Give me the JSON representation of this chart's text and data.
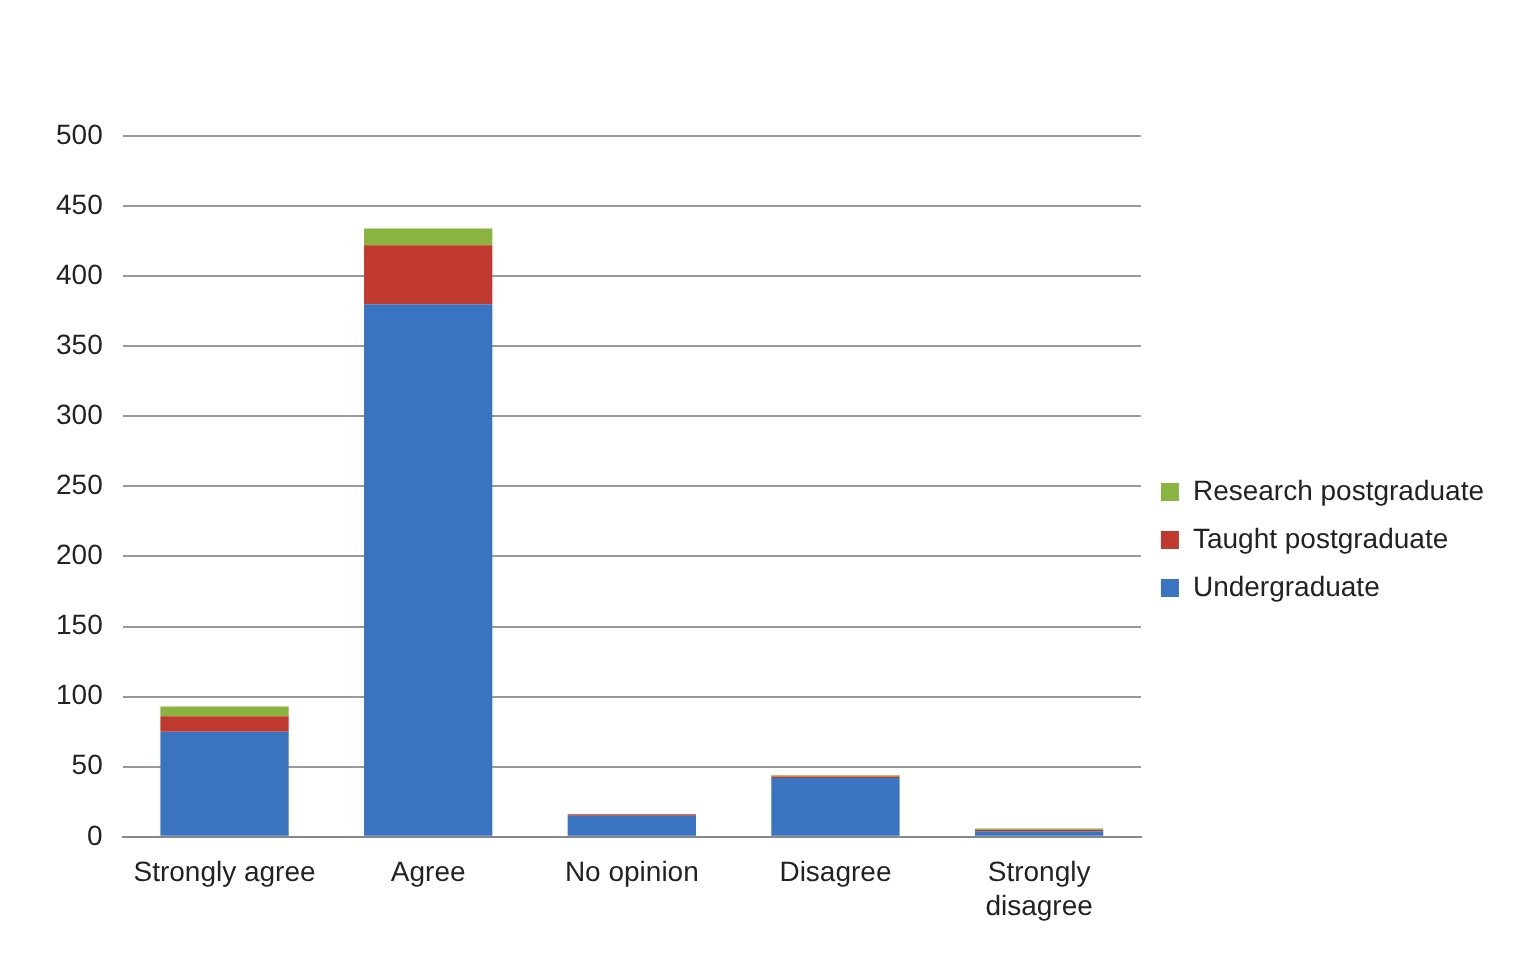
{
  "chart_data": {
    "type": "bar",
    "stacked": true,
    "categories": [
      "Strongly agree",
      "Agree",
      "No opinion",
      "Disagree",
      "Strongly disagree"
    ],
    "series": [
      {
        "name": "Undergraduate",
        "color": "#3a73bf",
        "values": [
          75,
          380,
          15,
          42,
          4
        ]
      },
      {
        "name": "Taught postgraduate",
        "color": "#c0392f",
        "values": [
          11,
          42,
          1,
          1,
          1
        ]
      },
      {
        "name": "Research postgraduate",
        "color": "#8bb33f",
        "values": [
          7,
          12,
          0,
          1,
          1
        ]
      }
    ],
    "ylim": [
      0,
      500
    ],
    "yticks": [
      0,
      50,
      100,
      150,
      200,
      250,
      300,
      350,
      400,
      450,
      500
    ],
    "grid": "y",
    "legend": "right"
  }
}
